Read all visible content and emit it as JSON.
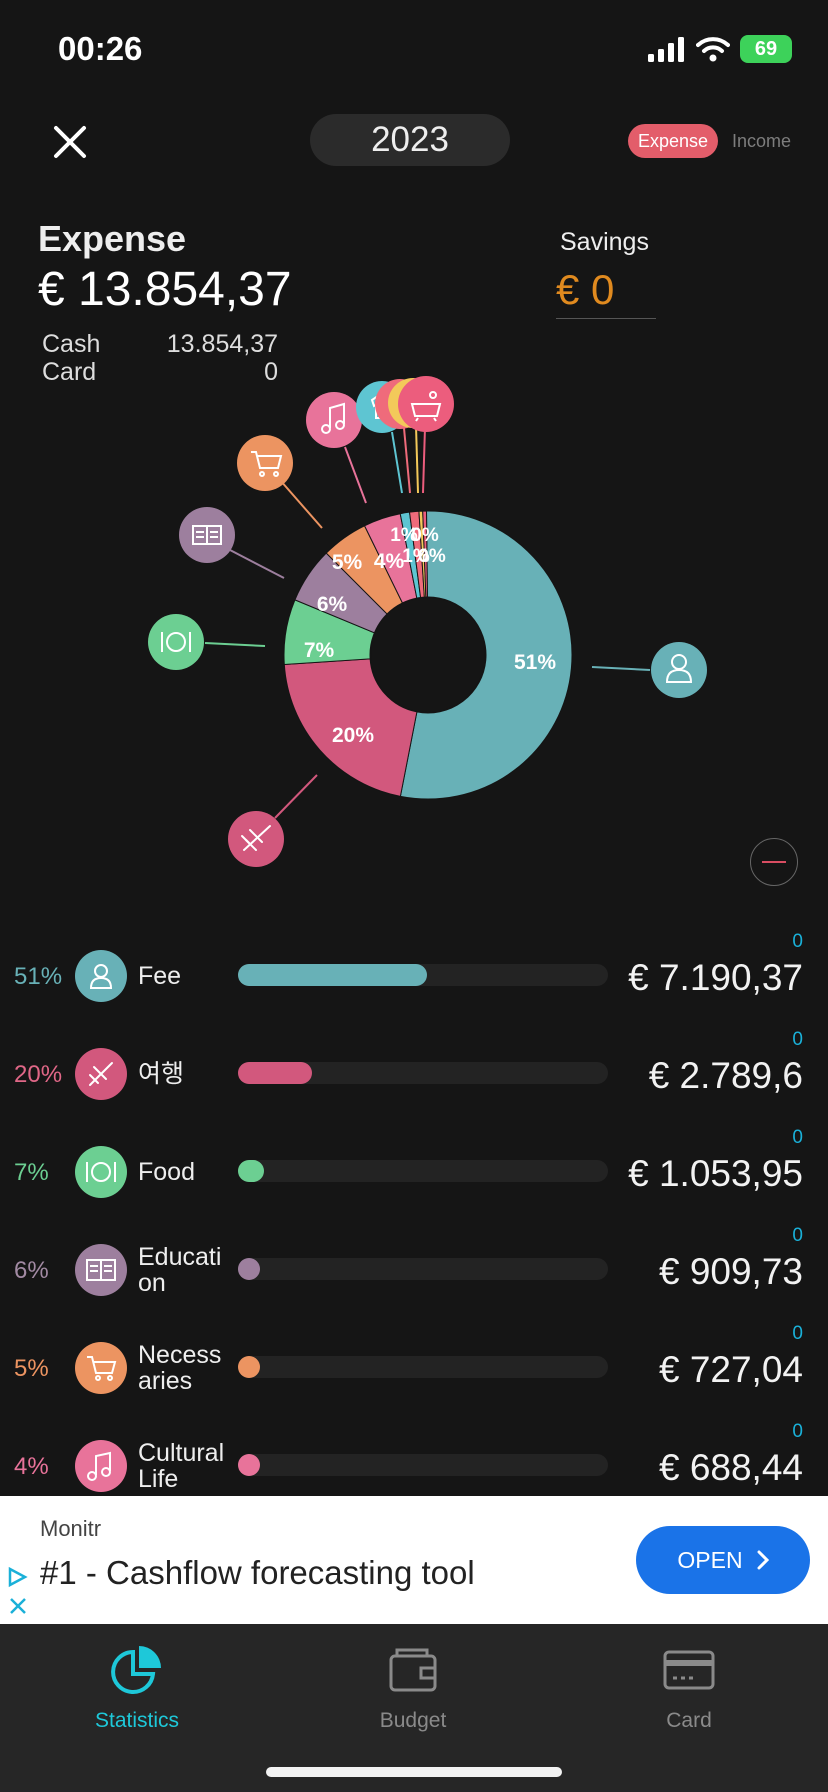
{
  "status_bar": {
    "time": "00:26",
    "battery": "69"
  },
  "header": {
    "year": "2023",
    "expense_toggle": "Expense",
    "income_toggle": "Income"
  },
  "summary": {
    "expense_label": "Expense",
    "expense_total": "€ 13.854,37",
    "cash_label": "Cash",
    "cash_value": "13.854,37",
    "card_label": "Card",
    "card_value": "0",
    "savings_label": "Savings",
    "savings_value": "€ 0"
  },
  "chart_data": {
    "type": "donut",
    "slice_labels_shown": [
      "51%",
      "20%",
      "7%",
      "6%",
      "5%",
      "4%",
      "1%",
      "1%",
      "0%",
      "0%"
    ],
    "slices": [
      {
        "label": "Fee",
        "percent": 51,
        "color": "#68b1b7",
        "icon": "person-icon"
      },
      {
        "label": "여행",
        "percent": 20,
        "color": "#d2587d",
        "icon": "airplane-icon"
      },
      {
        "label": "Food",
        "percent": 7,
        "color": "#6ccf92",
        "icon": "plate-icon"
      },
      {
        "label": "Education",
        "percent": 6,
        "color": "#9d7f9e",
        "icon": "book-icon"
      },
      {
        "label": "Necessaries",
        "percent": 5,
        "color": "#ec9461",
        "icon": "cart-icon"
      },
      {
        "label": "Cultural Life",
        "percent": 4,
        "color": "#e8739a",
        "icon": "music-icon"
      },
      {
        "label": "",
        "percent": 1,
        "color": "#5ec5d2",
        "icon": "shirt-icon"
      },
      {
        "label": "",
        "percent": 1,
        "color": "#ef6b7b",
        "icon": "bottle-icon"
      },
      {
        "label": "",
        "percent": 0.4,
        "color": "#f3c95a",
        "icon": "circle-icon"
      },
      {
        "label": "",
        "percent": 0.4,
        "color": "#ec5d7d",
        "icon": "bath-icon"
      }
    ]
  },
  "categories": [
    {
      "pct": "51%",
      "name": "Fee",
      "zero": "0",
      "amount": "€ 7.190,37",
      "fill": 0.51,
      "color": "#68b1b7",
      "pct_color": "#68b1b7"
    },
    {
      "pct": "20%",
      "name": "여행",
      "zero": "0",
      "amount": "€ 2.789,6",
      "fill": 0.2,
      "color": "#d2587d",
      "pct_color": "#e06787"
    },
    {
      "pct": "7%",
      "name": "Food",
      "zero": "0",
      "amount": "€ 1.053,95",
      "fill": 0.07,
      "color": "#6ccf92",
      "pct_color": "#6ccf92"
    },
    {
      "pct": "6%",
      "name": "Education",
      "zero": "0",
      "amount": "€ 909,73",
      "fill": 0.06,
      "color": "#9d7f9e",
      "pct_color": "#a28aa3"
    },
    {
      "pct": "5%",
      "name": "Necessaries",
      "zero": "0",
      "amount": "€ 727,04",
      "fill": 0.05,
      "color": "#ec9461",
      "pct_color": "#ec9461"
    },
    {
      "pct": "4%",
      "name": "Cultural Life",
      "zero": "0",
      "amount": "€ 688,44",
      "fill": 0.04,
      "color": "#e8739a",
      "pct_color": "#e8739a"
    }
  ],
  "ad": {
    "brand": "Monitr",
    "headline": "#1 - Cashflow forecasting tool",
    "button": "OPEN"
  },
  "tabs": [
    {
      "label": "Statistics",
      "active": true
    },
    {
      "label": "Budget",
      "active": false
    },
    {
      "label": "Card",
      "active": false
    }
  ]
}
